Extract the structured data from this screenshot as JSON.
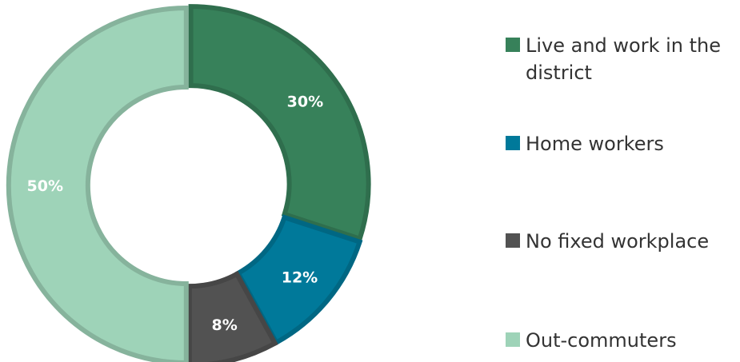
{
  "chart_data": {
    "type": "pie",
    "donut": true,
    "title": "",
    "slices": [
      {
        "name": "Live and work in the district",
        "value": 30,
        "label": "30%",
        "color": "#37815a"
      },
      {
        "name": "Home workers",
        "value": 12,
        "label": "12%",
        "color": "#00799a"
      },
      {
        "name": "No fixed workplace",
        "value": 8,
        "label": "8%",
        "color": "#525252"
      },
      {
        "name": "Out-commuters",
        "value": 50,
        "label": "50%",
        "color": "#9ed3b8"
      }
    ],
    "legend_position": "right"
  },
  "legend": {
    "items": [
      {
        "label": "Live and work in the district",
        "color": "#37815a"
      },
      {
        "label": "Home workers",
        "color": "#00799a"
      },
      {
        "label": "No fixed workplace",
        "color": "#525252"
      },
      {
        "label": "Out-commuters",
        "color": "#9ed3b8"
      }
    ]
  }
}
